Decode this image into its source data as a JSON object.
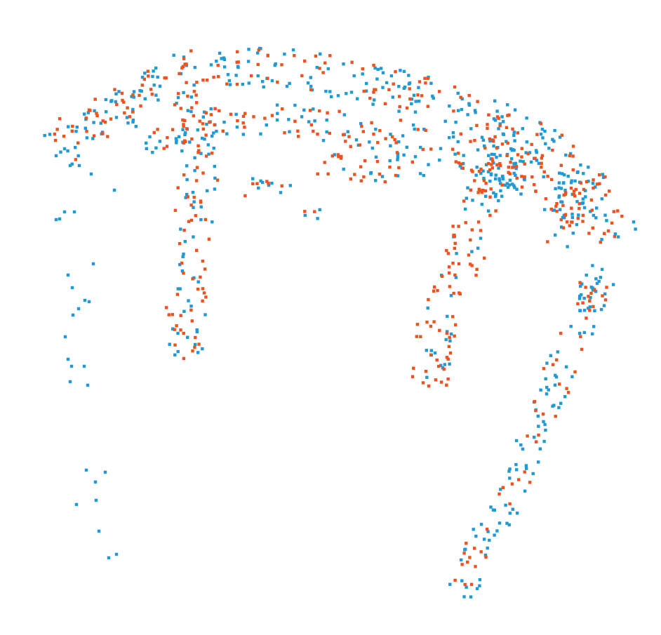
{
  "scene": {
    "subject": "point-cloud",
    "background": "#ffffff",
    "colors": {
      "set_a": "#1f9ad6",
      "set_b": "#f0521e"
    }
  }
}
